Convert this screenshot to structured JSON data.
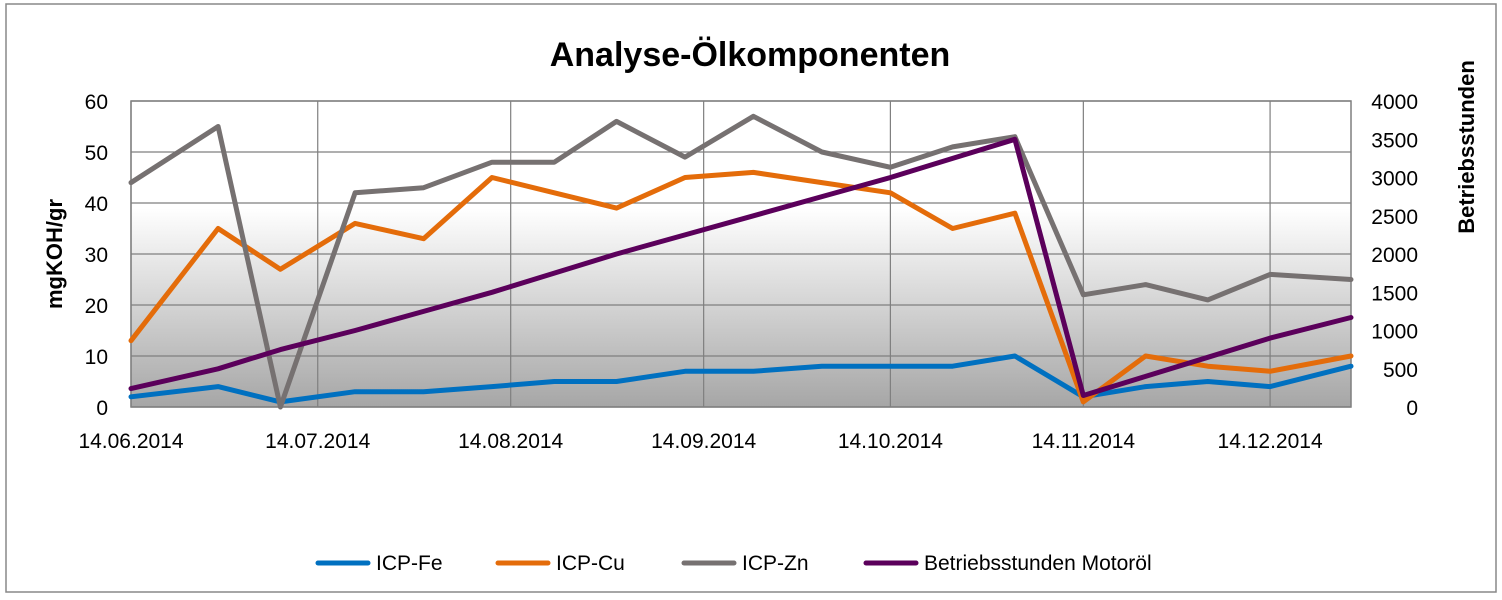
{
  "chart_data": {
    "type": "line",
    "title": "Analyse-Ölkomponenten",
    "ylabel": "mgKOH/gr",
    "y2label": "Betriebsstunden",
    "ylim": [
      0,
      60
    ],
    "y2lim": [
      0,
      4000
    ],
    "yticks": [
      "0",
      "10",
      "20",
      "30",
      "40",
      "50",
      "60"
    ],
    "y2ticks": [
      "0",
      "500",
      "1000",
      "1500",
      "2000",
      "2500",
      "3000",
      "3500",
      "4000"
    ],
    "xticks": [
      "14.06.2014",
      "14.07.2014",
      "14.08.2014",
      "14.09.2014",
      "14.10.2014",
      "14.11.2014",
      "14.12.2014"
    ],
    "xrange": [
      "2014-06-14",
      "2014-12-27"
    ],
    "grid": true,
    "legend_position": "bottom",
    "series": [
      {
        "name": "ICP-Fe",
        "axis": "left",
        "color": "#0070C0",
        "x": [
          "2014-06-14",
          "2014-06-28",
          "2014-07-08",
          "2014-07-20",
          "2014-07-31",
          "2014-08-11",
          "2014-08-21",
          "2014-08-31",
          "2014-09-11",
          "2014-09-22",
          "2014-10-03",
          "2014-10-14",
          "2014-10-24",
          "2014-11-03",
          "2014-11-14",
          "2014-11-24",
          "2014-12-04",
          "2014-12-14",
          "2014-12-27"
        ],
        "values": [
          2,
          4,
          1,
          3,
          3,
          4,
          5,
          5,
          7,
          7,
          8,
          8,
          8,
          10,
          2,
          4,
          5,
          4,
          8
        ]
      },
      {
        "name": "ICP-Cu",
        "axis": "left",
        "color": "#E46C0A",
        "x": [
          "2014-06-14",
          "2014-06-28",
          "2014-07-08",
          "2014-07-20",
          "2014-07-31",
          "2014-08-11",
          "2014-08-21",
          "2014-08-31",
          "2014-09-11",
          "2014-09-22",
          "2014-10-03",
          "2014-10-14",
          "2014-10-24",
          "2014-11-03",
          "2014-11-14",
          "2014-11-24",
          "2014-12-04",
          "2014-12-14",
          "2014-12-27"
        ],
        "values": [
          13,
          35,
          27,
          36,
          33,
          45,
          42,
          39,
          45,
          46,
          44,
          42,
          35,
          38,
          1,
          10,
          8,
          7,
          10
        ]
      },
      {
        "name": "ICP-Zn",
        "axis": "left",
        "color": "#767171",
        "x": [
          "2014-06-14",
          "2014-06-28",
          "2014-07-08",
          "2014-07-20",
          "2014-07-31",
          "2014-08-11",
          "2014-08-21",
          "2014-08-31",
          "2014-09-11",
          "2014-09-22",
          "2014-10-03",
          "2014-10-14",
          "2014-10-24",
          "2014-11-03",
          "2014-11-14",
          "2014-11-24",
          "2014-12-04",
          "2014-12-14",
          "2014-12-27"
        ],
        "values": [
          44,
          55,
          0,
          42,
          43,
          48,
          48,
          56,
          49,
          57,
          50,
          47,
          51,
          53,
          22,
          24,
          21,
          26,
          25
        ]
      },
      {
        "name": "Betriebsstunden Motoröl",
        "axis": "right",
        "color": "#5B005B",
        "x": [
          "2014-06-14",
          "2014-06-28",
          "2014-07-08",
          "2014-07-20",
          "2014-07-31",
          "2014-08-11",
          "2014-08-21",
          "2014-08-31",
          "2014-09-11",
          "2014-09-22",
          "2014-10-03",
          "2014-10-14",
          "2014-10-24",
          "2014-11-03",
          "2014-11-14",
          "2014-11-24",
          "2014-12-04",
          "2014-12-14",
          "2014-12-27"
        ],
        "values": [
          240,
          500,
          750,
          1000,
          1250,
          1500,
          1750,
          2000,
          2250,
          2500,
          2750,
          3000,
          3250,
          3500,
          150,
          400,
          650,
          900,
          1170
        ]
      }
    ]
  }
}
